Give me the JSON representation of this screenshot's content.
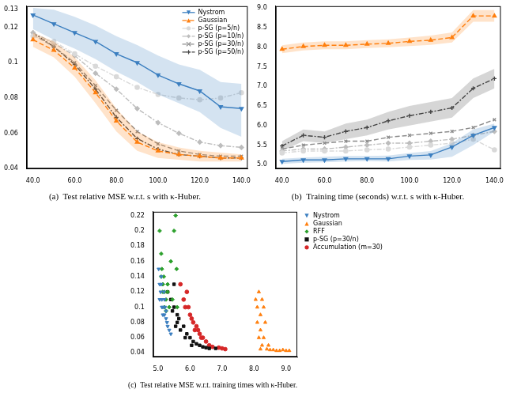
{
  "chart_data": [
    {
      "type": "line",
      "title": "(a)  Test relative MSE w.r.t. s with κ-Huber.",
      "x": [
        40,
        50,
        60,
        70,
        80,
        90,
        100,
        110,
        120,
        130,
        140
      ],
      "xlim": [
        37,
        143
      ],
      "xticks": [
        {
          "value": 40,
          "label": "40.0"
        },
        {
          "value": 60,
          "label": "60.0"
        },
        {
          "value": 80,
          "label": "80.0"
        },
        {
          "value": 100,
          "label": "100.0"
        },
        {
          "value": 120,
          "label": "120.0"
        },
        {
          "value": 140,
          "label": "140.0"
        }
      ],
      "ylim": [
        0.04,
        0.132
      ],
      "yticks": [
        0.04,
        0.06,
        0.08,
        0.1,
        0.12,
        0.13
      ],
      "grid": false,
      "legend": "upper right",
      "series": [
        {
          "name": "Nystrom",
          "color": "#3c7fc0",
          "marker": "triangle_down",
          "line_style": "solid",
          "values": [
            0.127,
            0.122,
            0.117,
            0.112,
            0.105,
            0.1,
            0.093,
            0.088,
            0.084,
            0.075,
            0.074
          ],
          "lower": [
            0.119,
            0.113,
            0.108,
            0.102,
            0.095,
            0.089,
            0.082,
            0.077,
            0.072,
            0.063,
            0.058
          ],
          "upper": [
            0.131,
            0.13,
            0.126,
            0.121,
            0.115,
            0.11,
            0.104,
            0.099,
            0.096,
            0.089,
            0.088
          ]
        },
        {
          "name": "Gaussian",
          "color": "#ff7f0e",
          "marker": "triangle",
          "line_style": "dashed",
          "values": [
            0.113,
            0.107,
            0.097,
            0.083,
            0.067,
            0.055,
            0.05,
            0.048,
            0.047,
            0.046,
            0.046
          ],
          "lower": [
            0.109,
            0.103,
            0.092,
            0.077,
            0.061,
            0.05,
            0.046,
            0.045,
            0.044,
            0.044,
            0.044
          ],
          "upper": [
            0.117,
            0.112,
            0.103,
            0.09,
            0.074,
            0.061,
            0.055,
            0.052,
            0.05,
            0.049,
            0.048
          ]
        },
        {
          "name": "p-SG (p=5/n)",
          "color": "#d9d9d9",
          "marker": "circle",
          "line_style": "dashdot",
          "values": [
            0.115,
            0.112,
            0.105,
            0.098,
            0.092,
            0.086,
            0.082,
            0.08,
            0.079,
            0.08,
            0.083
          ]
        },
        {
          "name": "p-SG (p=10/n)",
          "color": "#bdbdbd",
          "marker": "diamond",
          "line_style": "dashdot",
          "values": [
            0.117,
            0.111,
            0.104,
            0.094,
            0.085,
            0.074,
            0.066,
            0.06,
            0.055,
            0.053,
            0.052
          ]
        },
        {
          "name": "p-SG (p=30/n)",
          "color": "#8c8c8c",
          "marker": "x",
          "line_style": "dashed",
          "values": [
            0.116,
            0.109,
            0.1,
            0.087,
            0.073,
            0.061,
            0.054,
            0.05,
            0.048,
            0.047,
            0.047
          ]
        },
        {
          "name": "p-SG (p=50/n)",
          "color": "#444444",
          "marker": "plus",
          "line_style": "dashdot",
          "values": [
            0.117,
            0.109,
            0.099,
            0.085,
            0.069,
            0.057,
            0.051,
            0.048,
            0.047,
            0.046,
            0.046
          ]
        }
      ]
    },
    {
      "type": "line",
      "title": "(b)  Training time (seconds) w.r.t. s with κ-Huber.",
      "x": [
        40,
        50,
        60,
        70,
        80,
        90,
        100,
        110,
        120,
        130,
        140
      ],
      "xlim": [
        37,
        143
      ],
      "xticks": [
        {
          "value": 40,
          "label": "40.0"
        },
        {
          "value": 60,
          "label": "60.0"
        },
        {
          "value": 80,
          "label": "80.0"
        },
        {
          "value": 100,
          "label": "100.0"
        },
        {
          "value": 120,
          "label": "120.0"
        },
        {
          "value": 140,
          "label": "140.0"
        }
      ],
      "ylim": [
        4.9,
        9.05
      ],
      "yticks": [
        {
          "value": 5,
          "label": "5.0"
        },
        {
          "value": 5.5,
          "label": "5.5"
        },
        {
          "value": 6,
          "label": "6.0"
        },
        {
          "value": 6.5,
          "label": "6.5"
        },
        {
          "value": 7,
          "label": "7.0"
        },
        {
          "value": 7.5,
          "label": "7.5"
        },
        {
          "value": 8,
          "label": "8.0"
        },
        {
          "value": 8.5,
          "label": "8.5"
        },
        {
          "value": 9,
          "label": "9.0"
        }
      ],
      "grid": false,
      "series": [
        {
          "name": "Nystrom",
          "color": "#3c7fc0",
          "marker": "triangle_down",
          "line_style": "solid",
          "values": [
            5.08,
            5.12,
            5.12,
            5.15,
            5.15,
            5.15,
            5.22,
            5.25,
            5.45,
            5.75,
            5.95
          ],
          "lower": [
            5.02,
            5.05,
            5.06,
            5.08,
            5.09,
            5.08,
            5.12,
            5.13,
            5.2,
            5.5,
            5.85
          ],
          "upper": [
            5.15,
            5.18,
            5.2,
            5.22,
            5.22,
            5.23,
            5.3,
            5.35,
            5.55,
            5.9,
            6.05
          ]
        },
        {
          "name": "Gaussian",
          "color": "#ff7f0e",
          "marker": "triangle",
          "line_style": "dashed",
          "values": [
            7.95,
            8.02,
            8.05,
            8.05,
            8.08,
            8.1,
            8.15,
            8.18,
            8.25,
            8.8,
            8.8
          ],
          "lower": [
            7.85,
            7.92,
            7.95,
            7.95,
            7.98,
            8.0,
            8.03,
            8.06,
            8.12,
            8.65,
            8.65
          ],
          "upper": [
            8.05,
            8.12,
            8.15,
            8.15,
            8.18,
            8.2,
            8.25,
            8.3,
            8.38,
            8.95,
            8.95
          ]
        },
        {
          "name": "p-SG (p=5/n)",
          "color": "#d9d9d9",
          "marker": "circle",
          "line_style": "dashdot",
          "values": [
            5.3,
            5.35,
            5.35,
            5.35,
            5.38,
            5.4,
            5.45,
            5.5,
            5.55,
            5.65,
            5.38
          ]
        },
        {
          "name": "p-SG (p=10/n)",
          "color": "#bdbdbd",
          "marker": "diamond",
          "line_style": "dashdot",
          "values": [
            5.35,
            5.4,
            5.4,
            5.45,
            5.5,
            5.55,
            5.55,
            5.6,
            5.65,
            5.75,
            5.85
          ]
        },
        {
          "name": "p-SG (p=30/n)",
          "color": "#8c8c8c",
          "marker": "x",
          "line_style": "dashed",
          "values": [
            5.4,
            5.5,
            5.55,
            5.6,
            5.6,
            5.7,
            5.75,
            5.8,
            5.85,
            5.95,
            6.15
          ]
        },
        {
          "name": "p-SG (p=50/n)",
          "color": "#444444",
          "marker": "plus",
          "line_style": "dashdot",
          "values": [
            5.48,
            5.75,
            5.7,
            5.85,
            5.95,
            6.12,
            6.25,
            6.35,
            6.45,
            6.95,
            7.2
          ],
          "lower": [
            5.35,
            5.6,
            5.55,
            5.65,
            5.75,
            5.9,
            6.0,
            6.1,
            6.2,
            6.7,
            6.95
          ],
          "upper": [
            5.6,
            5.9,
            5.85,
            6.05,
            6.15,
            6.35,
            6.5,
            6.6,
            6.7,
            7.2,
            7.45
          ]
        }
      ]
    },
    {
      "type": "scatter",
      "title": "(c)  Test relative MSE w.r.t. training times with κ-Huber.",
      "xlim": [
        4.85,
        9.35
      ],
      "xticks": [
        {
          "value": 5,
          "label": "5.0"
        },
        {
          "value": 6,
          "label": "6.0"
        },
        {
          "value": 7,
          "label": "7.0"
        },
        {
          "value": 8,
          "label": "8.0"
        },
        {
          "value": 9,
          "label": "9.0"
        }
      ],
      "ylim": [
        0.035,
        0.225
      ],
      "yticks": [
        0.04,
        0.06,
        0.08,
        0.1,
        0.12,
        0.14,
        0.16,
        0.18,
        0.2,
        0.22
      ],
      "grid": false,
      "legend": "right",
      "series": [
        {
          "name": "Nystrom",
          "color": "#3c7fc0",
          "marker": "triangle_down",
          "x": [
            5.02,
            5.05,
            5.08,
            5.1,
            5.12,
            5.15,
            5.18,
            5.2,
            5.22,
            5.25,
            5.28,
            5.3,
            5.35,
            5.4,
            5.05,
            5.1,
            5.15,
            5.2,
            5.12,
            5.25
          ],
          "values": [
            0.15,
            0.13,
            0.12,
            0.14,
            0.11,
            0.1,
            0.12,
            0.09,
            0.1,
            0.085,
            0.08,
            0.075,
            0.07,
            0.065,
            0.11,
            0.13,
            0.09,
            0.11,
            0.1,
            0.095
          ]
        },
        {
          "name": "Gaussian",
          "color": "#ff7f0e",
          "marker": "triangle",
          "x": [
            8.05,
            8.1,
            8.15,
            8.2,
            8.25,
            8.1,
            8.2,
            8.3,
            8.15,
            8.25,
            8.35,
            8.2,
            8.4,
            8.5,
            8.6,
            8.7,
            8.8,
            8.9,
            9.0,
            9.1,
            8.3,
            8.45
          ],
          "values": [
            0.11,
            0.1,
            0.12,
            0.09,
            0.11,
            0.08,
            0.07,
            0.1,
            0.06,
            0.05,
            0.08,
            0.045,
            0.045,
            0.044,
            0.044,
            0.043,
            0.043,
            0.044,
            0.043,
            0.043,
            0.06,
            0.05
          ]
        },
        {
          "name": "RFF",
          "color": "#2ca02c",
          "marker": "diamond",
          "x": [
            5.05,
            5.1,
            5.12,
            5.15,
            5.18,
            5.2,
            5.25,
            5.3,
            5.35,
            5.4,
            5.5,
            5.55,
            5.6,
            5.1,
            5.2,
            5.3,
            5.45,
            5.58,
            5.15,
            5.25
          ],
          "values": [
            0.2,
            0.17,
            0.15,
            0.13,
            0.14,
            0.12,
            0.11,
            0.12,
            0.1,
            0.16,
            0.2,
            0.22,
            0.1,
            0.14,
            0.1,
            0.13,
            0.11,
            0.15,
            0.12,
            0.095
          ]
        },
        {
          "name": "p-SG (p=30/n)",
          "color": "#111111",
          "marker": "square",
          "x": [
            5.3,
            5.4,
            5.5,
            5.5,
            5.6,
            5.6,
            5.7,
            5.8,
            5.9,
            6.0,
            6.1,
            6.2,
            6.3,
            6.4,
            6.5,
            6.6,
            6.8,
            5.45,
            5.65,
            5.85,
            6.05,
            5.55
          ],
          "values": [
            0.12,
            0.11,
            0.1,
            0.13,
            0.09,
            0.08,
            0.07,
            0.075,
            0.065,
            0.06,
            0.055,
            0.052,
            0.05,
            0.048,
            0.047,
            0.046,
            0.046,
            0.095,
            0.085,
            0.06,
            0.05,
            0.075
          ]
        },
        {
          "name": "Accumulation (m=30)",
          "color": "#d62728",
          "marker": "circle",
          "x": [
            5.7,
            5.8,
            5.9,
            5.95,
            6.0,
            6.1,
            6.2,
            6.25,
            6.3,
            6.4,
            6.5,
            6.6,
            6.7,
            6.9,
            7.0,
            7.1,
            5.85,
            6.05,
            6.35,
            6.15
          ],
          "values": [
            0.13,
            0.11,
            0.12,
            0.1,
            0.09,
            0.08,
            0.075,
            0.07,
            0.065,
            0.06,
            0.055,
            0.05,
            0.048,
            0.047,
            0.046,
            0.045,
            0.1,
            0.085,
            0.06,
            0.07
          ]
        }
      ]
    }
  ]
}
